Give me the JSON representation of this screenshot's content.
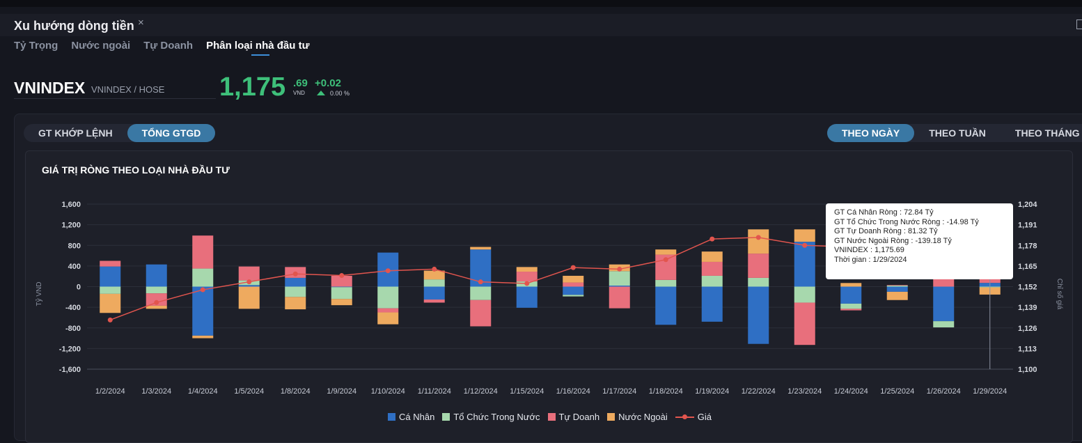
{
  "header": {
    "title": "Xu hướng dòng tiền",
    "close_glyph": "×"
  },
  "subtabs": [
    "Tỷ Trọng",
    "Nước ngoài",
    "Tự Doanh",
    "Phân loại nhà đầu tư"
  ],
  "active_subtab": "Phân loại nhà đầu tư",
  "quote": {
    "symbol": "VNINDEX",
    "exchange": "VNINDEX / HOSE",
    "price_int": "1,175",
    "price_dec": ".69",
    "unit": "VND",
    "change": "+0.02",
    "change_pct": "0.00 %"
  },
  "value_toggle": [
    "GT KHỚP LỆNH",
    "TỔNG GTGD"
  ],
  "value_toggle_active": "TỔNG GTGD",
  "period_toggle": [
    "THEO NGÀY",
    "THEO TUẦN",
    "THEO THÁNG"
  ],
  "period_toggle_active": "THEO NGÀY",
  "tooltip": {
    "lines": [
      "GT Cá Nhân Ròng  : 72.84 Tỷ",
      "GT Tổ Chức Trong Nước Ròng : -14.98 Tỷ",
      "GT Tự Doanh Ròng : 81.32 Tỷ",
      "GT Nước Ngoài Ròng : -139.18 Tỷ",
      "VNINDEX : 1,175.69",
      "Thời gian : 1/29/2024"
    ]
  },
  "colors": {
    "ca_nhan": "#2f6fc4",
    "to_chuc": "#a7d8ad",
    "tu_doanh": "#e86f7c",
    "nuoc_ngoai": "#eeaa5f",
    "gia": "#e2554e",
    "price_up": "#3ec07a"
  },
  "chart_data": {
    "type": "bar",
    "stacked": true,
    "title": "GIÁ TRỊ RÒNG THEO LOẠI NHÀ ĐẦU TƯ",
    "ylabel": "Tỷ VND",
    "y2label": "Chỉ số giá",
    "ylim": [
      -1600,
      1600
    ],
    "y2lim": [
      1100,
      1204
    ],
    "yticks": [
      "1,600",
      "1,200",
      "800",
      "400",
      "0",
      "-400",
      "-800",
      "-1,200",
      "-1,600"
    ],
    "y2ticks": [
      "1,204",
      "1,191",
      "1,178",
      "1,165",
      "1,152",
      "1,139",
      "1,126",
      "1,113",
      "1,100"
    ],
    "categories": [
      "1/2/2024",
      "1/3/2024",
      "1/4/2024",
      "1/5/2024",
      "1/8/2024",
      "1/9/2024",
      "1/10/2024",
      "1/11/2024",
      "1/12/2024",
      "1/15/2024",
      "1/16/2024",
      "1/17/2024",
      "1/18/2024",
      "1/19/2024",
      "1/22/2024",
      "1/23/2024",
      "1/24/2024",
      "1/25/2024",
      "1/26/2024",
      "1/29/2024"
    ],
    "series": [
      {
        "name": "Cá Nhân",
        "values": [
          390,
          430,
          -950,
          30,
          170,
          -10,
          660,
          -250,
          720,
          -410,
          -160,
          20,
          -740,
          -680,
          -1110,
          870,
          -330,
          -100,
          -670,
          72.84
        ]
      },
      {
        "name": "Tổ Chức Trong Nước",
        "values": [
          -140,
          -130,
          350,
          90,
          -200,
          -230,
          -420,
          140,
          -260,
          100,
          -30,
          280,
          130,
          210,
          170,
          -310,
          -100,
          20,
          -120,
          -14.98
        ]
      },
      {
        "name": "Tự Doanh",
        "values": [
          110,
          -240,
          640,
          270,
          210,
          210,
          -80,
          -60,
          -510,
          190,
          80,
          -420,
          490,
          270,
          470,
          -820,
          -30,
          10,
          340,
          81.32
        ]
      },
      {
        "name": "Nước Ngoài",
        "values": [
          -370,
          -60,
          -50,
          -430,
          -240,
          -120,
          -230,
          170,
          50,
          90,
          130,
          130,
          100,
          200,
          470,
          240,
          70,
          -160,
          40,
          -139.18
        ]
      }
    ],
    "line": {
      "name": "Giá",
      "values": [
        1131,
        1142,
        1150,
        1155,
        1160,
        1159,
        1162,
        1163,
        1155,
        1154,
        1164,
        1163,
        1169,
        1182,
        1183,
        1178,
        1177,
        1172,
        1174,
        1175.69
      ]
    },
    "legend": [
      "Cá Nhân",
      "Tổ Chức Trong Nước",
      "Tự Doanh",
      "Nước Ngoài",
      "Giá"
    ],
    "legend_position": "bottom",
    "grid": true
  }
}
